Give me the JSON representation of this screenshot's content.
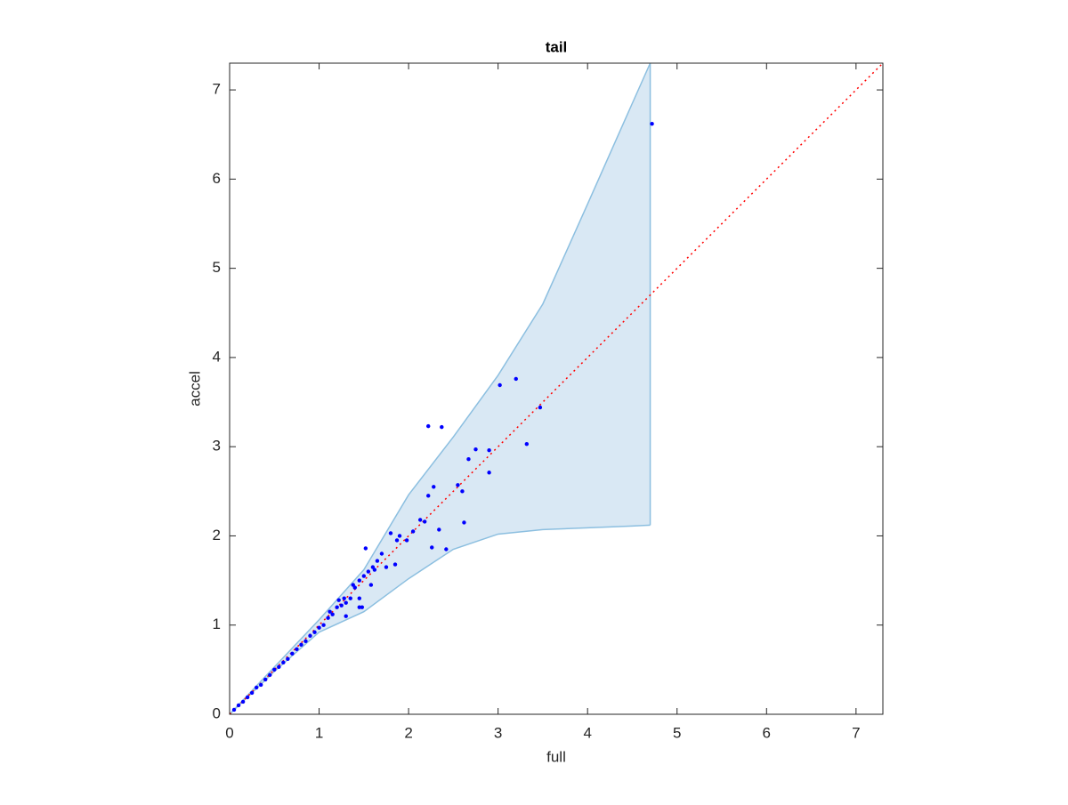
{
  "chart_data": {
    "type": "scatter",
    "title": "tail",
    "xlabel": "full",
    "ylabel": "accel",
    "xlim": [
      0,
      7.3
    ],
    "ylim": [
      0,
      7.3
    ],
    "xticks": [
      0,
      1,
      2,
      3,
      4,
      5,
      6,
      7
    ],
    "yticks": [
      0,
      1,
      2,
      3,
      4,
      5,
      6,
      7
    ],
    "color": "#0000ff",
    "x": [
      2.22,
      2.37,
      3.02,
      3.2,
      3.47,
      3.32,
      2.9,
      2.9,
      2.75,
      2.67,
      2.55,
      2.6,
      2.62,
      2.28,
      2.22,
      2.34,
      2.42,
      2.26,
      2.13,
      2.18,
      2.05,
      1.98,
      1.9,
      1.87,
      1.8,
      1.85,
      1.52,
      4.72,
      1.7,
      1.65,
      1.6,
      1.55,
      1.5,
      1.45,
      1.4,
      1.35,
      1.3,
      1.25,
      1.2,
      1.15,
      1.1,
      1.05,
      1.0,
      1.48,
      1.45,
      1.62,
      1.3,
      1.45,
      0.9,
      0.8,
      0.7,
      0.6,
      0.5,
      0.4,
      0.3,
      0.2,
      0.1,
      0.05,
      0.15,
      0.25,
      0.35,
      0.45,
      0.55,
      0.65,
      0.75,
      0.85,
      0.95,
      1.12,
      1.22,
      1.38,
      1.28,
      1.58,
      1.75
    ],
    "values": [
      3.23,
      3.22,
      3.69,
      3.76,
      3.44,
      3.03,
      2.96,
      2.71,
      2.97,
      2.86,
      2.57,
      2.5,
      2.15,
      2.55,
      2.45,
      2.07,
      1.85,
      1.87,
      2.18,
      2.16,
      2.05,
      1.95,
      2.0,
      1.95,
      2.03,
      1.68,
      1.86,
      6.62,
      1.8,
      1.72,
      1.65,
      1.6,
      1.55,
      1.5,
      1.42,
      1.3,
      1.25,
      1.22,
      1.2,
      1.12,
      1.08,
      1.0,
      0.97,
      1.2,
      1.3,
      1.62,
      1.1,
      1.2,
      0.88,
      0.78,
      0.68,
      0.58,
      0.5,
      0.39,
      0.3,
      0.19,
      0.1,
      0.05,
      0.14,
      0.24,
      0.33,
      0.44,
      0.53,
      0.62,
      0.73,
      0.82,
      0.92,
      1.15,
      1.28,
      1.45,
      1.3,
      1.45,
      1.65
    ],
    "band": {
      "color": "#d9e8f4",
      "edge_color": "#8cbfe0",
      "x": [
        0,
        0.5,
        1,
        1.5,
        2,
        2.5,
        3,
        3.5,
        4,
        4.5,
        4.7
      ],
      "upper": [
        0,
        0.53,
        1.06,
        1.62,
        2.46,
        3.11,
        3.8,
        4.6,
        5.72,
        6.85,
        7.3
      ],
      "lower": [
        0,
        0.48,
        0.92,
        1.15,
        1.52,
        1.85,
        2.02,
        2.07,
        2.09,
        2.11,
        2.12
      ]
    },
    "reference_line": {
      "color": "#ff0000",
      "x": [
        0,
        7.3
      ],
      "y": [
        0,
        7.3
      ]
    }
  }
}
